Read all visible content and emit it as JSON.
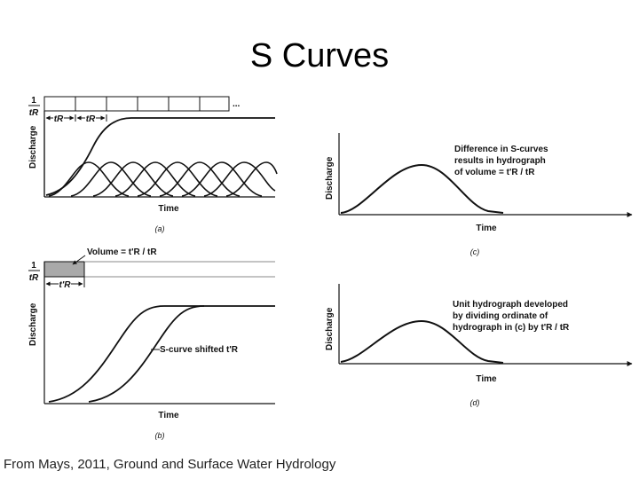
{
  "slide": {
    "title": "S Curves",
    "credit": "From Mays, 2011, Ground and Surface Water Hydrology"
  },
  "panel_a": {
    "rate_numerator": "1",
    "rate_denominator": "tR",
    "interval_1": "tR",
    "interval_2": "tR",
    "ellipsis": "...",
    "ylabel": "Discharge",
    "xlabel": "Time",
    "caption": "(a)"
  },
  "panel_b": {
    "rate_numerator": "1",
    "rate_denominator": "tR",
    "volume_label": "Volume = t'R / tR",
    "interval": "t'R",
    "shift_label": "S-curve shifted t'R",
    "ylabel": "Discharge",
    "xlabel": "Time",
    "caption": "(b)"
  },
  "panel_c": {
    "ylabel": "Discharge",
    "xlabel": "Time",
    "caption": "(c)",
    "annotation": [
      "Difference in S-curves",
      "results in hydrograph",
      "of volume = t'R / tR"
    ]
  },
  "panel_d": {
    "ylabel": "Discharge",
    "xlabel": "Time",
    "caption": "(d)",
    "annotation": [
      "Unit hydrograph developed",
      "by dividing ordinate of",
      "hydrograph in (c) by t'R / tR"
    ]
  },
  "colors": {
    "line": "#111111",
    "volume_fill": "#a9a9a9"
  }
}
